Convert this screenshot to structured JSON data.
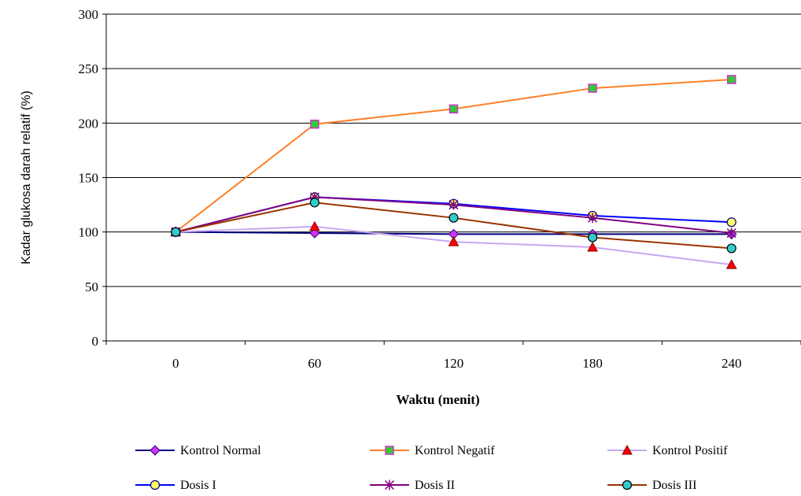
{
  "chart_data": {
    "type": "line",
    "title": "",
    "xlabel": "Waktu (menit)",
    "ylabel": "Kadar glukosa darah relatif (%)",
    "categories": [
      "0",
      "60",
      "120",
      "180",
      "240"
    ],
    "ylim": [
      0,
      300
    ],
    "yticks": [
      0,
      50,
      100,
      150,
      200,
      250,
      300
    ],
    "grid": "horizontal",
    "legend_position": "bottom",
    "series": [
      {
        "name": "Kontrol Normal",
        "values": [
          100,
          99,
          98,
          98,
          98
        ],
        "line_color": "#000080",
        "marker": "diamond",
        "marker_fill": "#cc33ff",
        "marker_stroke": "#330066"
      },
      {
        "name": "Kontrol Negatif",
        "values": [
          100,
          199,
          213,
          232,
          240
        ],
        "line_color": "#ff7f27",
        "marker": "square",
        "marker_fill": "#33cc33",
        "marker_stroke": "#cc33cc"
      },
      {
        "name": "Kontrol Positif",
        "values": [
          100,
          105,
          91,
          86,
          70
        ],
        "line_color": "#c8a8f0",
        "marker": "triangle",
        "marker_fill": "#ff0000",
        "marker_stroke": "#800000"
      },
      {
        "name": "Dosis I",
        "values": [
          100,
          132,
          126,
          115,
          109
        ],
        "line_color": "#0000ff",
        "marker": "circle",
        "marker_fill": "#ffff66",
        "marker_stroke": "#000080"
      },
      {
        "name": "Dosis II",
        "values": [
          100,
          132,
          125,
          113,
          99
        ],
        "line_color": "#800080",
        "marker": "asterisk",
        "marker_fill": "none",
        "marker_stroke": "#800080"
      },
      {
        "name": "Dosis III",
        "values": [
          100,
          127,
          113,
          95,
          85
        ],
        "line_color": "#993300",
        "marker": "circle",
        "marker_fill": "#33cccc",
        "marker_stroke": "#000000"
      }
    ]
  }
}
